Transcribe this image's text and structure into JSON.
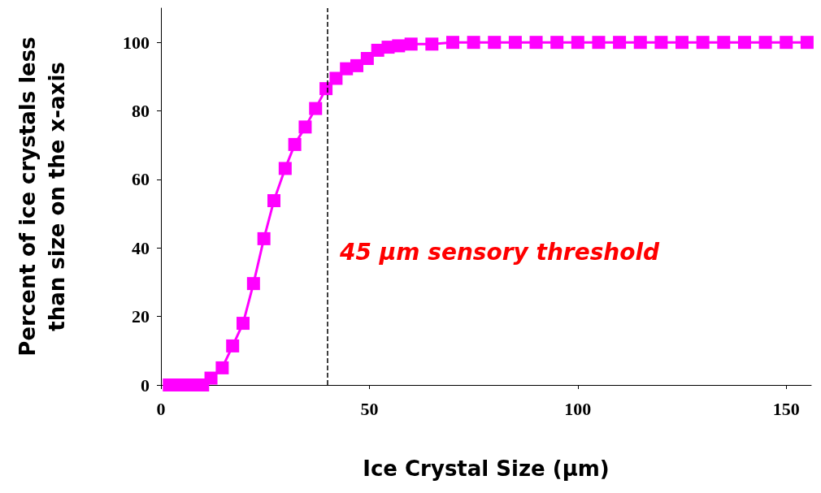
{
  "chart_data": {
    "type": "line",
    "xlabel": "Ice Crystal Size (µm)",
    "ylabel": "Percent of ice crystals less\nthan size on the x-axis",
    "series": [
      {
        "color": "#ff00ff",
        "x": [
          2,
          4,
          6,
          8,
          10,
          12,
          14.7,
          17.2,
          19.7,
          22.2,
          24.7,
          27.1,
          29.8,
          32.1,
          34.6,
          37.1,
          39.6,
          42,
          44.5,
          47,
          49.5,
          52,
          54.5,
          57,
          60,
          65,
          70,
          75,
          80,
          85,
          90,
          95,
          100,
          105,
          110,
          115,
          120,
          125,
          130,
          135,
          140,
          145,
          150,
          155
        ],
        "values": [
          0,
          0,
          0,
          0,
          0,
          2,
          5,
          11.4,
          18,
          29.6,
          42.7,
          53.8,
          63.2,
          70.2,
          75.3,
          80.7,
          86.5,
          89.5,
          92.3,
          93.2,
          95.3,
          97.7,
          98.6,
          99,
          99.5,
          99.5,
          100,
          100,
          100,
          100,
          100,
          100,
          100,
          100,
          100,
          100,
          100,
          100,
          100,
          100,
          100,
          100,
          100,
          100
        ]
      }
    ],
    "xlim": [
      0,
      156
    ],
    "xticks": [
      0,
      50,
      100,
      150
    ],
    "ylim": [
      0,
      110
    ],
    "yticks": [
      0,
      20,
      40,
      60,
      80,
      100
    ],
    "grid": false,
    "marker": "square",
    "line_style": "solid",
    "ref_lines": [
      {
        "axis": "x",
        "value": 40,
        "color": "#000000",
        "line_style": "dashed"
      }
    ],
    "annotations": [
      "45 µm sensory threshold"
    ]
  }
}
